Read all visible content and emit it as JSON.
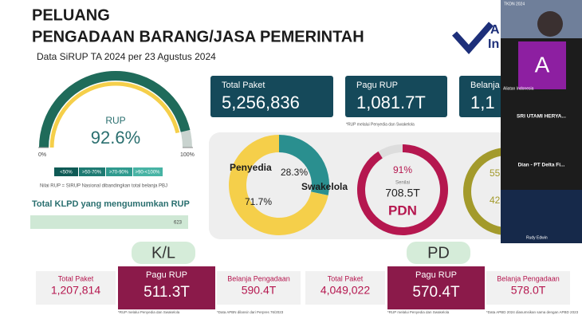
{
  "slide": {
    "title_line1": "PELUANG",
    "title_line2": "PENGADAAN BARANG/JASA PEMERINTAH",
    "subtitle": "Data SiRUP TA 2024 per 23 Agustus 2024",
    "logo": [
      "A",
      "In"
    ],
    "gauge": {
      "label": "RUP",
      "value": 92.6,
      "value_label": "92.6%",
      "ticks": [
        {
          "value": 0,
          "label": "0%"
        },
        {
          "value": 100,
          "label": "100%"
        }
      ],
      "legend": [
        "<50%",
        ">50-70%",
        ">70-90%",
        ">90-<100%"
      ],
      "note": "Nilai RUP = SIRUP Nasional dibandingkan total belanja PBJ"
    },
    "klpd": {
      "title": "Total KLPD yang mengumumkan RUP",
      "value": "623"
    },
    "summary": [
      {
        "label": "Total Paket",
        "value": "5,256,836"
      },
      {
        "label": "Pagu RUP",
        "value": "1,081.7T"
      },
      {
        "label": "Belanja",
        "value": "1,1"
      }
    ],
    "summary_note": "*RUP melalui Penyedia dan Swakelola",
    "donut": [
      {
        "name": "Swakelola",
        "value": 28.3,
        "value_label": "28.3%",
        "color": "#2a8f8f"
      },
      {
        "name": "Penyedia",
        "value": 71.7,
        "value_label": "71.7%",
        "color": "#f5cf4a"
      }
    ],
    "pdn": {
      "value": 91,
      "value_label": "91%",
      "caption": "Senilai",
      "amount": "708.5T",
      "name": "PDN"
    },
    "third_ring": [
      "55",
      "42"
    ],
    "kl": {
      "title": "K/L",
      "cards": [
        {
          "label": "Total Paket",
          "value": "1,207,814"
        },
        {
          "label": "Pagu RUP",
          "value": "511.3T"
        },
        {
          "label": "Belanja Pengadaan",
          "value": "590.4T"
        }
      ],
      "notes": [
        "*RUP melalui Penyedia dan Swakelola",
        "*Data APBN dilansir dari Perpres 76/2023"
      ]
    },
    "pd": {
      "title": "PD",
      "cards": [
        {
          "label": "Total Paket",
          "value": "4,049,022"
        },
        {
          "label": "Pagu RUP",
          "value": "570.4T"
        },
        {
          "label": "Belanja Pengadaan",
          "value": "578.0T"
        }
      ],
      "notes": [
        "*RUP melalui Penyedia dan Swakelola",
        "*Data APBD 2024 diasumsikan sama dengan APBD 2023"
      ]
    }
  },
  "participants": {
    "banner": "TKDN 2024",
    "avatar_letter": "A",
    "tiles": [
      "Aliatan Indonesia",
      "SRI UTAMI HERYA...",
      "Dian - PT Delta Fi...",
      "Rudy Edwin"
    ]
  }
}
